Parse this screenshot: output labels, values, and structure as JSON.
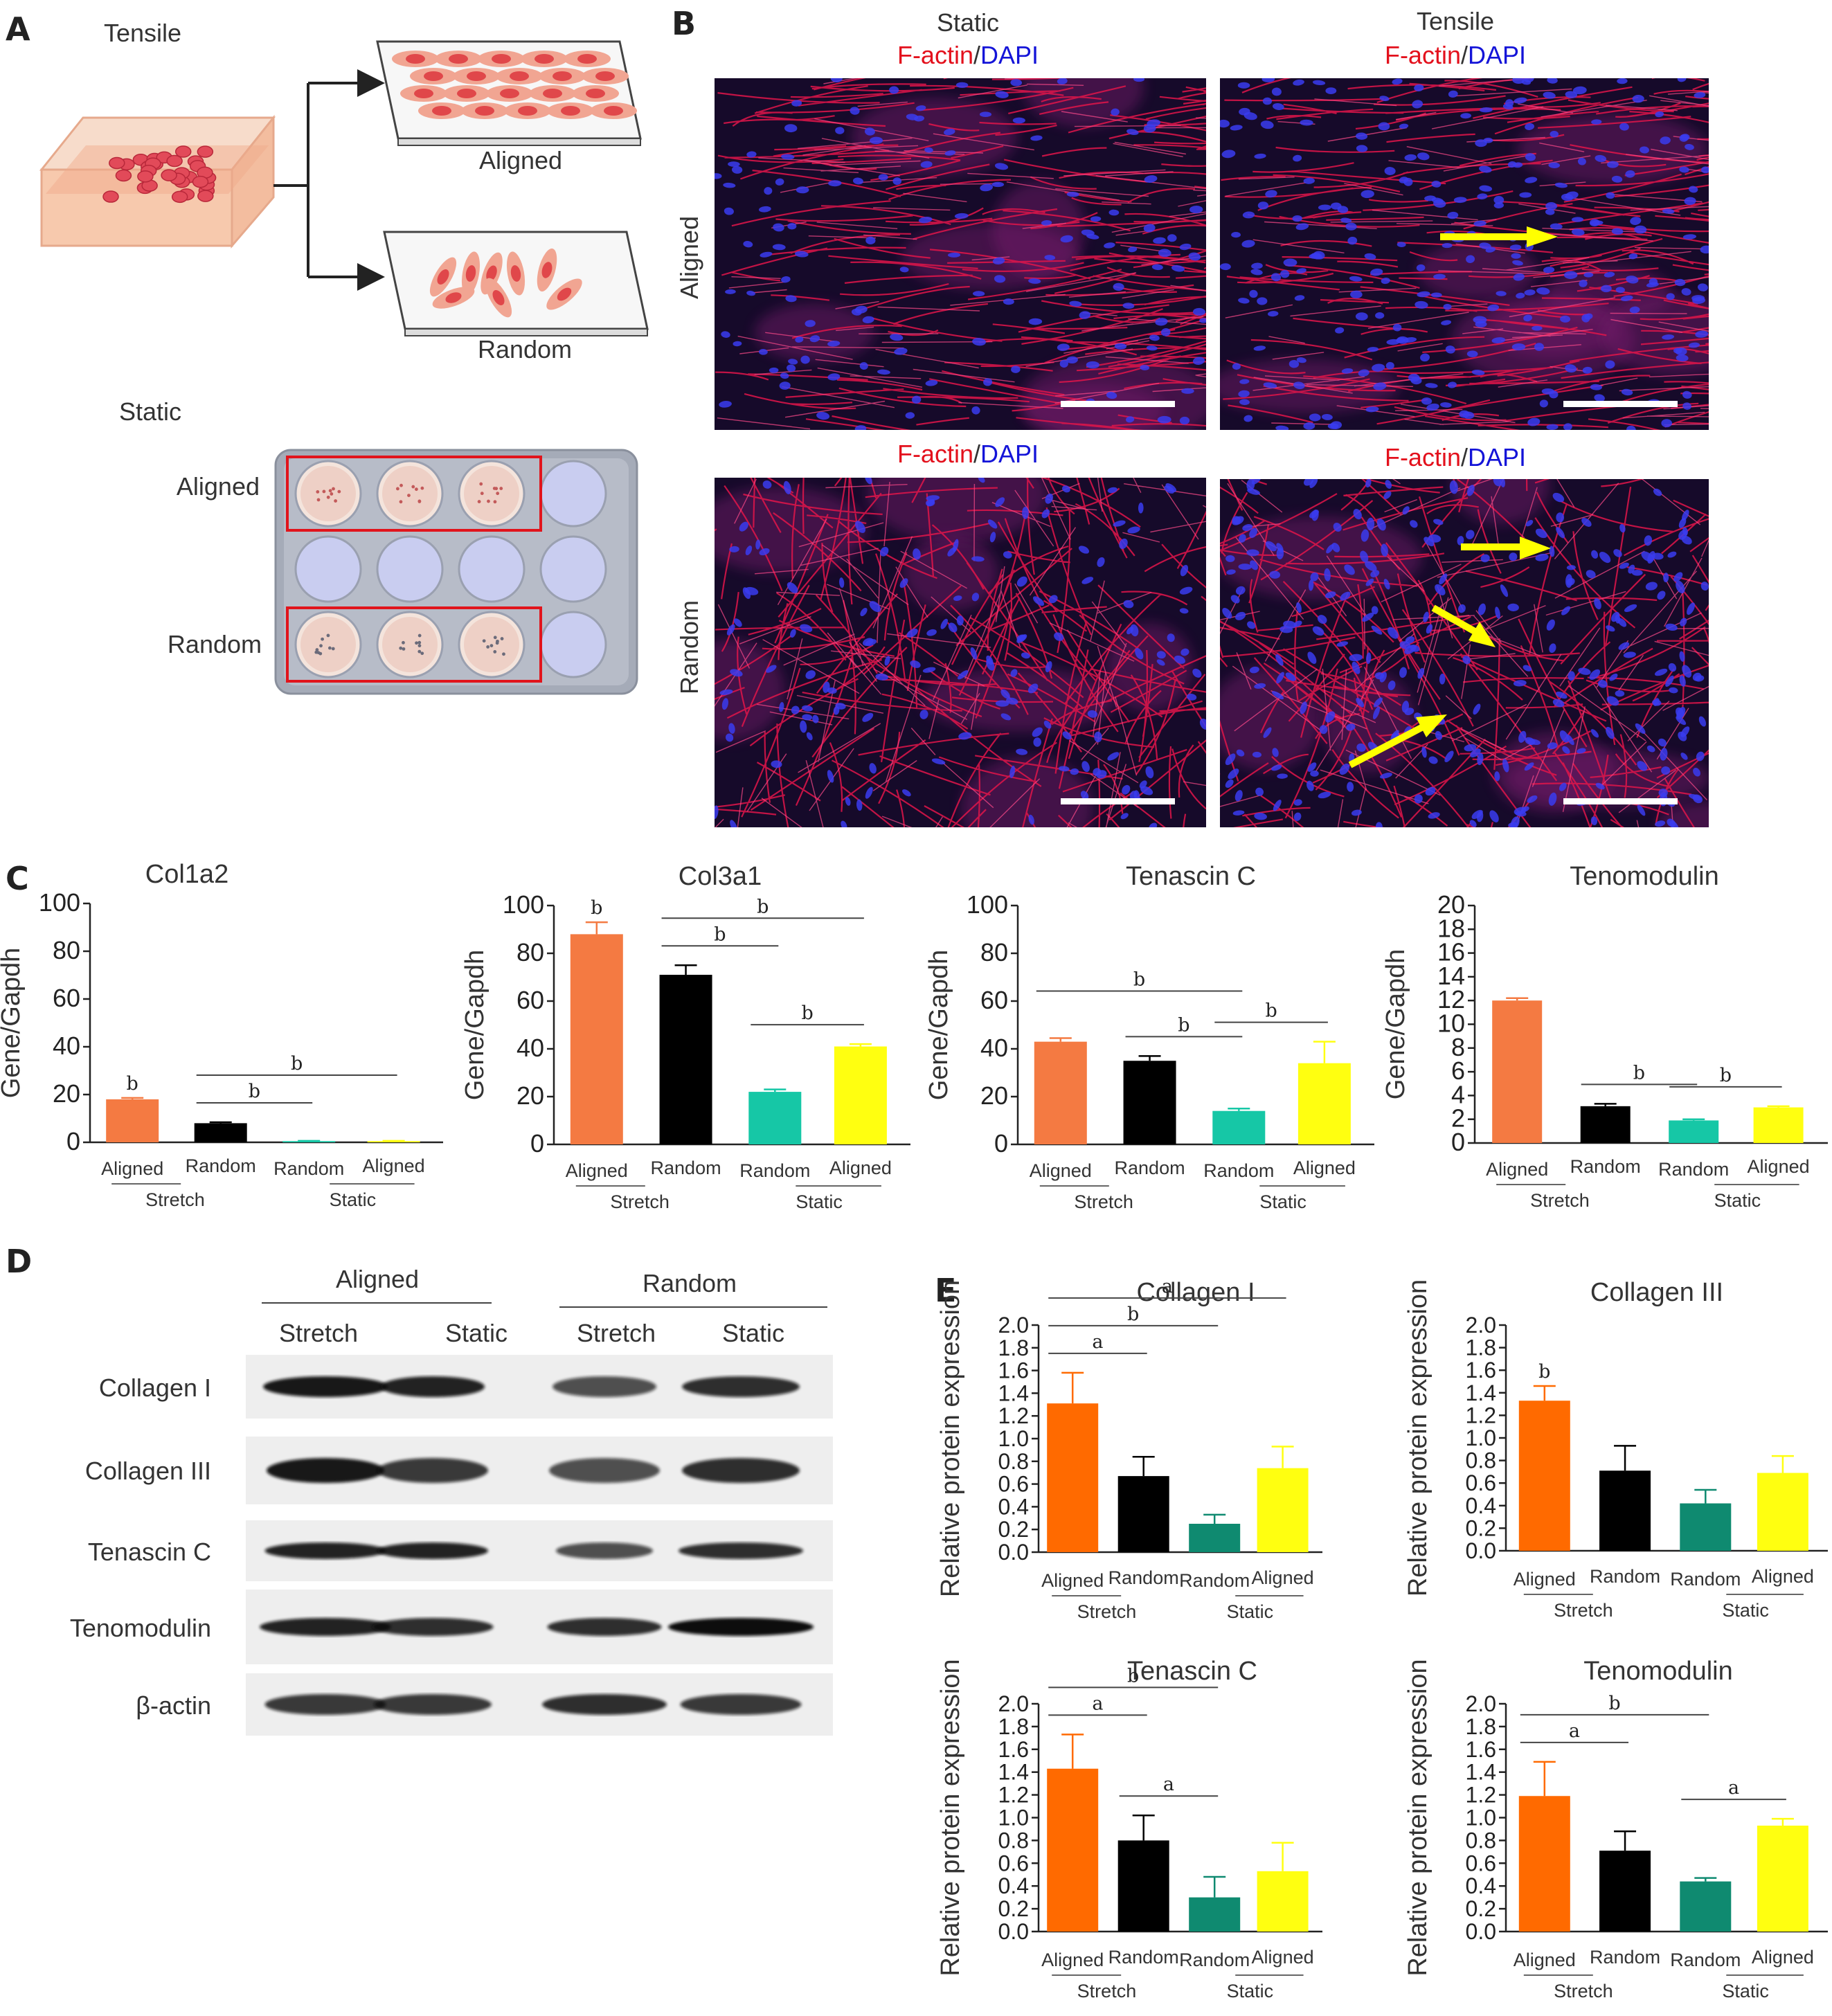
{
  "panels": {
    "A": {
      "label": "A",
      "tensile": "Tensile",
      "static": "Static",
      "aligned": "Aligned",
      "random": "Random",
      "plate_aligned": "Aligned",
      "plate_random": "Random"
    },
    "B": {
      "label": "B",
      "col_static": "Static",
      "col_tensile": "Tensile",
      "stain_factin": "F-actin",
      "stain_sep": "/",
      "stain_dapi": "DAPI",
      "row_aligned": "Aligned",
      "row_random": "Random"
    },
    "C": {
      "label": "C",
      "ylabel": "Gene/Gapdh"
    },
    "D": {
      "label": "D",
      "group_aligned": "Aligned",
      "group_random": "Random",
      "lanes": [
        "Stretch",
        "Static",
        "Stretch",
        "Static"
      ],
      "rows": [
        "Collagen I",
        "Collagen III",
        "Tenascin C",
        "Tenomodulin",
        "β-actin"
      ]
    },
    "E": {
      "label": "E",
      "ylabel": "Relative protein expression"
    }
  },
  "xcats": [
    "Aligned",
    "Random",
    "Random",
    "Aligned"
  ],
  "groups": [
    "Stretch",
    "Static"
  ],
  "colors": {
    "orange_C": "#f47a42",
    "teal_C": "#16c7a6",
    "yellow": "#ffff10",
    "orange_E": "#ff6a00",
    "teal_E": "#0f8a70",
    "black": "#000000"
  },
  "chart_data": [
    {
      "type": "bar",
      "title": "Col1a2",
      "ylabel": "Gene/Gapdh",
      "ylim": [
        0,
        100
      ],
      "yticks": [
        0,
        20,
        40,
        60,
        80,
        100
      ],
      "categories": [
        "Aligned",
        "Random",
        "Random",
        "Aligned"
      ],
      "groups": [
        "Stretch",
        "Stretch",
        "Static",
        "Static"
      ],
      "values": [
        18,
        8,
        0.5,
        0.5
      ],
      "errors": [
        0.6,
        0.4,
        0.1,
        0.1
      ],
      "annotations": [
        {
          "label": "b",
          "bar": 0
        },
        {
          "label": "b",
          "from": 1,
          "to": 2
        },
        {
          "label": "b",
          "from": 1,
          "to": 3
        }
      ]
    },
    {
      "type": "bar",
      "title": "Col3a1",
      "ylabel": "Gene/Gapdh",
      "ylim": [
        0,
        100
      ],
      "yticks": [
        0,
        20,
        40,
        60,
        80,
        100
      ],
      "categories": [
        "Aligned",
        "Random",
        "Random",
        "Aligned"
      ],
      "groups": [
        "Stretch",
        "Stretch",
        "Static",
        "Static"
      ],
      "values": [
        88,
        71,
        22,
        41
      ],
      "errors": [
        5,
        4,
        1,
        1
      ],
      "annotations": [
        {
          "label": "b",
          "bar": 0
        },
        {
          "label": "b",
          "from": 1,
          "to": 3
        },
        {
          "label": "b",
          "from": 1,
          "to": 2
        },
        {
          "label": "b",
          "from": 2,
          "to": 3
        }
      ]
    },
    {
      "type": "bar",
      "title": "Tenascin C",
      "ylabel": "Gene/Gapdh",
      "ylim": [
        0,
        100
      ],
      "yticks": [
        0,
        20,
        40,
        60,
        80,
        100
      ],
      "categories": [
        "Aligned",
        "Random",
        "Random",
        "Aligned"
      ],
      "groups": [
        "Stretch",
        "Stretch",
        "Static",
        "Static"
      ],
      "values": [
        43,
        35,
        14,
        34
      ],
      "errors": [
        1.5,
        2,
        1,
        9
      ],
      "annotations": [
        {
          "label": "b",
          "from": 0,
          "to": 2
        },
        {
          "label": "b",
          "from": 1,
          "to": 2
        },
        {
          "label": "b",
          "from": 2,
          "to": 3
        }
      ]
    },
    {
      "type": "bar",
      "title": "Tenomodulin",
      "ylabel": "Gene/Gapdh",
      "ylim": [
        0,
        20
      ],
      "yticks": [
        0,
        2,
        4,
        6,
        8,
        10,
        12,
        14,
        16,
        18,
        20
      ],
      "categories": [
        "Aligned",
        "Random",
        "Random",
        "Aligned"
      ],
      "groups": [
        "Stretch",
        "Stretch",
        "Static",
        "Static"
      ],
      "values": [
        12,
        3.1,
        1.9,
        3.0
      ],
      "errors": [
        0.2,
        0.2,
        0.1,
        0.1
      ],
      "annotations": [
        {
          "label": "b",
          "from": 1,
          "to": 2
        },
        {
          "label": "b",
          "from": 2,
          "to": 3
        }
      ]
    },
    {
      "type": "bar",
      "title": "Collagen I",
      "ylabel": "Relative protein expression",
      "ylim": [
        0,
        2
      ],
      "yticks": [
        0,
        0.2,
        0.4,
        0.6,
        0.8,
        1.0,
        1.2,
        1.4,
        1.6,
        1.8,
        2.0
      ],
      "categories": [
        "Aligned",
        "Random",
        "Random",
        "Aligned"
      ],
      "groups": [
        "Stretch",
        "Stretch",
        "Static",
        "Static"
      ],
      "values": [
        1.31,
        0.67,
        0.25,
        0.74
      ],
      "errors": [
        0.27,
        0.17,
        0.08,
        0.19
      ],
      "annotations": [
        {
          "label": "a",
          "from": 0,
          "to": 1
        },
        {
          "label": "b",
          "from": 0,
          "to": 2
        },
        {
          "label": "a",
          "from": 0,
          "to": 3
        }
      ]
    },
    {
      "type": "bar",
      "title": "Collagen III",
      "ylabel": "Relative protein expression",
      "ylim": [
        0,
        2
      ],
      "yticks": [
        0,
        0.2,
        0.4,
        0.6,
        0.8,
        1.0,
        1.2,
        1.4,
        1.6,
        1.8,
        2.0
      ],
      "categories": [
        "Aligned",
        "Random",
        "Random",
        "Aligned"
      ],
      "groups": [
        "Stretch",
        "Stretch",
        "Static",
        "Static"
      ],
      "values": [
        1.33,
        0.71,
        0.42,
        0.69
      ],
      "errors": [
        0.13,
        0.22,
        0.12,
        0.15
      ],
      "annotations": [
        {
          "label": "b",
          "bar": 0
        }
      ]
    },
    {
      "type": "bar",
      "title": "Tenascin C",
      "ylabel": "Relative protein expression",
      "ylim": [
        0,
        2
      ],
      "yticks": [
        0,
        0.2,
        0.4,
        0.6,
        0.8,
        1.0,
        1.2,
        1.4,
        1.6,
        1.8,
        2.0
      ],
      "categories": [
        "Aligned",
        "Random",
        "Random",
        "Aligned"
      ],
      "groups": [
        "Stretch",
        "Stretch",
        "Static",
        "Static"
      ],
      "values": [
        1.43,
        0.8,
        0.3,
        0.53
      ],
      "errors": [
        0.3,
        0.22,
        0.18,
        0.25
      ],
      "annotations": [
        {
          "label": "a",
          "from": 0,
          "to": 1
        },
        {
          "label": "b",
          "from": 0,
          "to": 2
        },
        {
          "label": "a",
          "from": 1,
          "to": 2
        }
      ]
    },
    {
      "type": "bar",
      "title": "Tenomodulin",
      "ylabel": "Relative protein expression",
      "ylim": [
        0,
        2
      ],
      "yticks": [
        0,
        0.2,
        0.4,
        0.6,
        0.8,
        1.0,
        1.2,
        1.4,
        1.6,
        1.8,
        2.0
      ],
      "categories": [
        "Aligned",
        "Random",
        "Random",
        "Aligned"
      ],
      "groups": [
        "Stretch",
        "Stretch",
        "Static",
        "Static"
      ],
      "values": [
        1.19,
        0.71,
        0.44,
        0.93
      ],
      "errors": [
        0.3,
        0.17,
        0.03,
        0.06
      ],
      "annotations": [
        {
          "label": "a",
          "from": 0,
          "to": 1
        },
        {
          "label": "b",
          "from": 0,
          "to": 2
        },
        {
          "label": "a",
          "from": 2,
          "to": 3
        }
      ]
    }
  ]
}
